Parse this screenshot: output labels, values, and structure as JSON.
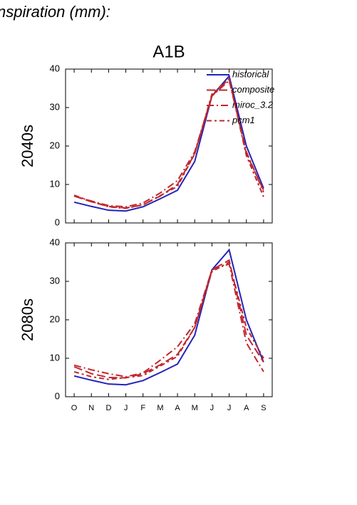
{
  "caption": "nspiration (mm):",
  "chart_data": {
    "type": "line",
    "title": "A1B",
    "categories": [
      "O",
      "N",
      "D",
      "J",
      "F",
      "M",
      "A",
      "M",
      "J",
      "J",
      "A",
      "S"
    ],
    "legend": "upper right",
    "panels": [
      {
        "ylabel": "2040s",
        "ylim": [
          0,
          40
        ],
        "yticks": [
          0,
          10,
          20,
          30,
          40
        ],
        "series": [
          {
            "name": "historical",
            "color": "#2323b8",
            "dash": "solid",
            "values": [
              5.4,
              4.3,
              3.3,
              3.1,
              4.2,
              6.3,
              8.5,
              16,
              33,
              38.2,
              20,
              9
            ]
          },
          {
            "name": "composite",
            "color": "#c0272d",
            "dash": "dash",
            "values": [
              7.0,
              5.5,
              4.3,
              3.9,
              4.7,
              7.0,
              10,
              18,
              33,
              37.5,
              18,
              8.5
            ]
          },
          {
            "name": "miroc_3.2",
            "color": "#c0272d",
            "dash": "dashdot",
            "values": [
              7.0,
              5.7,
              4.5,
              4.2,
              5.2,
              7.8,
              11,
              18.5,
              33,
              37,
              18.5,
              8
            ]
          },
          {
            "name": "pcm1",
            "color": "#c0272d",
            "dash": "longdashdot",
            "values": [
              7.2,
              5.6,
              4.2,
              3.8,
              4.7,
              7.1,
              9.5,
              18,
              33.5,
              37.5,
              17.5,
              6.8
            ]
          }
        ]
      },
      {
        "ylabel": "2080s",
        "ylim": [
          0,
          40
        ],
        "yticks": [
          0,
          10,
          20,
          30,
          40
        ],
        "series": [
          {
            "color": "#2323b8",
            "dash": "solid",
            "values": [
              5.4,
              4.3,
              3.3,
              3.1,
              4.2,
              6.3,
              8.5,
              16,
              33,
              38.2,
              20,
              9
            ]
          },
          {
            "color": "#c0272d",
            "dash": "dash",
            "values": [
              7.8,
              6.0,
              5.0,
              4.9,
              6.0,
              8.3,
              11,
              18,
              33,
              35.5,
              16,
              9
            ]
          },
          {
            "color": "#c0272d",
            "dash": "dashdot",
            "values": [
              8.2,
              7.0,
              6.0,
              5.2,
              6.2,
              9.5,
              13,
              19,
              33,
              34.5,
              14,
              6.5
            ]
          },
          {
            "color": "#c0272d",
            "dash": "longdashdot",
            "values": [
              6.5,
              5.2,
              4.5,
              5.0,
              5.5,
              8.0,
              10.5,
              18,
              32.5,
              35,
              18,
              10
            ]
          }
        ]
      }
    ]
  }
}
